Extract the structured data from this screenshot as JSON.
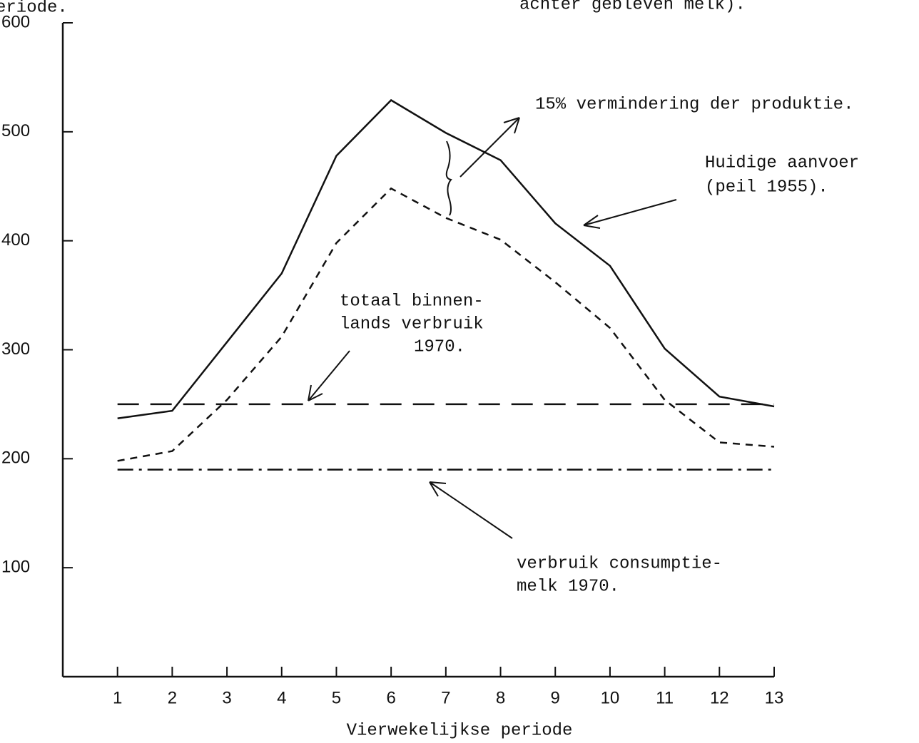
{
  "chart_data": {
    "type": "line",
    "header_texts": [
      "eriode.",
      "achter gebleven melk)."
    ],
    "x_label": "Vierwekelijkse periode",
    "x": [
      1,
      2,
      3,
      4,
      5,
      6,
      7,
      8,
      9,
      10,
      11,
      12,
      13
    ],
    "xlim": [
      0,
      13
    ],
    "xticks": [
      1,
      2,
      3,
      4,
      5,
      6,
      7,
      8,
      9,
      10,
      11,
      12,
      13
    ],
    "ylim": [
      0,
      600
    ],
    "yticks": [
      100,
      200,
      300,
      400,
      500,
      600
    ],
    "series": [
      {
        "color": "#111111",
        "dash": "none",
        "values": [
          237,
          244,
          307,
          370,
          478,
          529,
          499,
          474,
          416,
          377,
          301,
          257,
          248
        ]
      },
      {
        "color": "#111111",
        "dash": "10 8",
        "values": [
          198,
          207,
          254,
          312,
          398,
          448,
          421,
          401,
          362,
          320,
          254,
          215,
          211
        ]
      },
      {
        "color": "#111111",
        "dash": "30 16",
        "values": [
          250,
          250,
          250,
          250,
          250,
          250,
          250,
          250,
          250,
          250,
          250,
          250,
          250
        ]
      },
      {
        "color": "#111111",
        "dash": "22 8 4 8",
        "values": [
          190,
          190,
          190,
          190,
          190,
          190,
          190,
          190,
          190,
          190,
          190,
          190,
          190
        ]
      }
    ],
    "annotations": [
      [
        "15% vermindering der produktie."
      ],
      [
        "Huidige aanvoer",
        "(peil 1955)."
      ],
      [
        "totaal binnen-",
        "lands verbruik",
        "1970."
      ],
      [
        "verbruik consumptie-",
        "melk 1970."
      ]
    ]
  }
}
